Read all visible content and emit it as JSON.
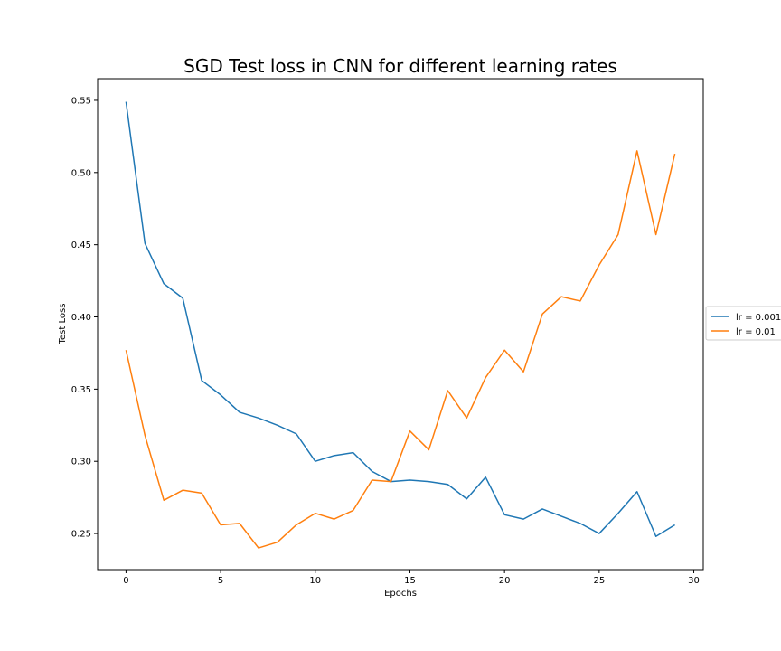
{
  "chart_data": {
    "type": "line",
    "title": "SGD Test loss in CNN for different learning rates",
    "xlabel": "Epochs",
    "ylabel": "Test Loss",
    "xlim": [
      -1.5,
      30.5
    ],
    "ylim": [
      0.225,
      0.565
    ],
    "xticks": [
      0,
      5,
      10,
      15,
      20,
      25,
      30
    ],
    "xtick_labels": [
      "0",
      "5",
      "10",
      "15",
      "20",
      "25",
      "30"
    ],
    "yticks": [
      0.25,
      0.3,
      0.35,
      0.4,
      0.45,
      0.5,
      0.55
    ],
    "ytick_labels": [
      "0.25",
      "0.30",
      "0.35",
      "0.40",
      "0.45",
      "0.50",
      "0.55"
    ],
    "grid": false,
    "legend": "center-right-outside",
    "x": [
      0,
      1,
      2,
      3,
      4,
      5,
      6,
      7,
      8,
      9,
      10,
      11,
      12,
      13,
      14,
      15,
      16,
      17,
      18,
      19,
      20,
      21,
      22,
      23,
      24,
      25,
      26,
      27,
      28,
      29
    ],
    "series": [
      {
        "name": "lr = 0.001",
        "color": "#1f77b4",
        "values": [
          0.549,
          0.451,
          0.423,
          0.413,
          0.356,
          0.346,
          0.334,
          0.33,
          0.325,
          0.319,
          0.3,
          0.304,
          0.306,
          0.293,
          0.286,
          0.287,
          0.286,
          0.284,
          0.274,
          0.289,
          0.263,
          0.26,
          0.267,
          0.262,
          0.257,
          0.25,
          0.264,
          0.279,
          0.248,
          0.256
        ]
      },
      {
        "name": "lr = 0.01",
        "color": "#ff7f0e",
        "values": [
          0.377,
          0.318,
          0.273,
          0.28,
          0.278,
          0.256,
          0.257,
          0.24,
          0.244,
          0.256,
          0.264,
          0.26,
          0.266,
          0.287,
          0.286,
          0.321,
          0.308,
          0.349,
          0.33,
          0.358,
          0.377,
          0.362,
          0.402,
          0.414,
          0.411,
          0.436,
          0.457,
          0.515,
          0.457,
          0.513
        ]
      }
    ]
  }
}
